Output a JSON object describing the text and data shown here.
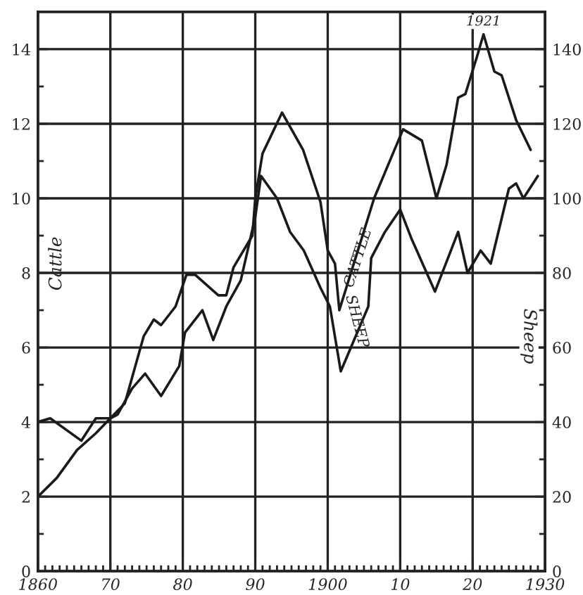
{
  "chart_data": {
    "type": "line",
    "ylabel": "Cattle",
    "y2label": "Sheep",
    "xlim": [
      1860,
      1930
    ],
    "ylim": [
      0,
      15
    ],
    "y2lim": [
      0,
      150
    ],
    "xticks": [
      {
        "value": 1860,
        "label": "1860"
      },
      {
        "value": 1861,
        "label": null
      },
      {
        "value": 1862,
        "label": null
      },
      {
        "value": 1863,
        "label": null
      },
      {
        "value": 1864,
        "label": null
      },
      {
        "value": 1865,
        "label": null
      },
      {
        "value": 1866,
        "label": null
      },
      {
        "value": 1867,
        "label": null
      },
      {
        "value": 1868,
        "label": null
      },
      {
        "value": 1869,
        "label": null
      },
      {
        "value": 1870,
        "label": "70"
      },
      {
        "value": 1871,
        "label": null
      },
      {
        "value": 1872,
        "label": null
      },
      {
        "value": 1873,
        "label": null
      },
      {
        "value": 1874,
        "label": null
      },
      {
        "value": 1875,
        "label": null
      },
      {
        "value": 1876,
        "label": null
      },
      {
        "value": 1877,
        "label": null
      },
      {
        "value": 1878,
        "label": null
      },
      {
        "value": 1879,
        "label": null
      },
      {
        "value": 1880,
        "label": "80"
      },
      {
        "value": 1881,
        "label": null
      },
      {
        "value": 1882,
        "label": null
      },
      {
        "value": 1883,
        "label": null
      },
      {
        "value": 1884,
        "label": null
      },
      {
        "value": 1885,
        "label": null
      },
      {
        "value": 1886,
        "label": null
      },
      {
        "value": 1887,
        "label": null
      },
      {
        "value": 1888,
        "label": null
      },
      {
        "value": 1889,
        "label": null
      },
      {
        "value": 1890,
        "label": "90"
      },
      {
        "value": 1891,
        "label": null
      },
      {
        "value": 1892,
        "label": null
      },
      {
        "value": 1893,
        "label": null
      },
      {
        "value": 1894,
        "label": null
      },
      {
        "value": 1895,
        "label": null
      },
      {
        "value": 1896,
        "label": null
      },
      {
        "value": 1897,
        "label": null
      },
      {
        "value": 1898,
        "label": null
      },
      {
        "value": 1899,
        "label": null
      },
      {
        "value": 1900,
        "label": "1900"
      },
      {
        "value": 1901,
        "label": null
      },
      {
        "value": 1902,
        "label": null
      },
      {
        "value": 1903,
        "label": null
      },
      {
        "value": 1904,
        "label": null
      },
      {
        "value": 1905,
        "label": null
      },
      {
        "value": 1906,
        "label": null
      },
      {
        "value": 1907,
        "label": null
      },
      {
        "value": 1908,
        "label": null
      },
      {
        "value": 1909,
        "label": null
      },
      {
        "value": 1910,
        "label": "10"
      },
      {
        "value": 1911,
        "label": null
      },
      {
        "value": 1912,
        "label": null
      },
      {
        "value": 1913,
        "label": null
      },
      {
        "value": 1914,
        "label": null
      },
      {
        "value": 1915,
        "label": null
      },
      {
        "value": 1916,
        "label": null
      },
      {
        "value": 1917,
        "label": null
      },
      {
        "value": 1918,
        "label": null
      },
      {
        "value": 1919,
        "label": null
      },
      {
        "value": 1920,
        "label": "20"
      },
      {
        "value": 1921,
        "label": null
      },
      {
        "value": 1922,
        "label": null
      },
      {
        "value": 1923,
        "label": null
      },
      {
        "value": 1924,
        "label": null
      },
      {
        "value": 1925,
        "label": null
      },
      {
        "value": 1926,
        "label": null
      },
      {
        "value": 1927,
        "label": null
      },
      {
        "value": 1928,
        "label": null
      },
      {
        "value": 1929,
        "label": null
      },
      {
        "value": 1930,
        "label": "1930"
      }
    ],
    "yticks": [
      0,
      {
        "value": 1,
        "label": null
      },
      2,
      {
        "value": 3,
        "label": null
      },
      4,
      {
        "value": 5,
        "label": null
      },
      6,
      {
        "value": 7,
        "label": null
      },
      8,
      {
        "value": 9,
        "label": null
      },
      10,
      {
        "value": 11,
        "label": null
      },
      12,
      {
        "value": 13,
        "label": null
      },
      14
    ],
    "y2ticks": [
      0,
      {
        "value": 10,
        "label": null
      },
      20,
      {
        "value": 30,
        "label": null
      },
      40,
      {
        "value": 50,
        "label": null
      },
      60,
      {
        "value": 70,
        "label": null
      },
      80,
      {
        "value": 90,
        "label": null
      },
      100,
      {
        "value": 110,
        "label": null
      },
      120,
      {
        "value": 130,
        "label": null
      },
      140
    ],
    "grid": true,
    "marker": "none",
    "line_style": "solid",
    "series": [
      {
        "name": "CATTLE",
        "color": "#1a1a1a",
        "x": [
          1860,
          1861.7,
          1866,
          1868,
          1870,
          1872,
          1874.6,
          1876,
          1877,
          1879,
          1880.5,
          1881.7,
          1884.9,
          1886,
          1887,
          1889.6,
          1890,
          1891,
          1893.7,
          1896.6,
          1899,
          1900,
          1901,
          1901.6,
          1906.4,
          1910.4,
          1913,
          1915,
          1916.4,
          1918,
          1919,
          1920.6,
          1921.5,
          1923,
          1924,
          1926,
          1928
        ],
        "values": [
          4.0,
          4.1,
          3.5,
          4.1,
          4.1,
          4.5,
          6.3,
          6.75,
          6.6,
          7.1,
          7.95,
          7.95,
          7.4,
          7.4,
          8.15,
          9.0,
          10.0,
          11.2,
          12.3,
          11.3,
          9.9,
          8.6,
          8.25,
          7.0,
          10.0,
          11.85,
          11.55,
          10.0,
          10.9,
          12.7,
          12.8,
          13.8,
          14.4,
          13.4,
          13.3,
          12.1,
          11.3
        ]
      },
      {
        "name": "SHEEP",
        "color": "#1a1a1a",
        "axis": "y2",
        "x": [
          1860,
          1862.6,
          1865.4,
          1868,
          1870,
          1871,
          1873,
          1874.8,
          1877,
          1879.5,
          1880.3,
          1882.7,
          1884.2,
          1886,
          1888,
          1890,
          1890.8,
          1893,
          1894.8,
          1896.7,
          1899,
          1900.3,
          1901.8,
          1905.6,
          1906,
          1907.9,
          1910,
          1911.6,
          1914.8,
          1918,
          1919.3,
          1921.1,
          1922.5,
          1925,
          1926,
          1927,
          1929
        ],
        "values": [
          20,
          25,
          32.5,
          37,
          41,
          42,
          49,
          53,
          47,
          55,
          64,
          70,
          62,
          71,
          78,
          95,
          106,
          100,
          91,
          86,
          76,
          71,
          53.6,
          71,
          84,
          91,
          97,
          89,
          75,
          91,
          80,
          86,
          82.5,
          102.6,
          104,
          100,
          106
        ]
      }
    ],
    "annotations": [
      {
        "text": "1921",
        "x": 1921.5,
        "y": 14.4
      }
    ]
  }
}
